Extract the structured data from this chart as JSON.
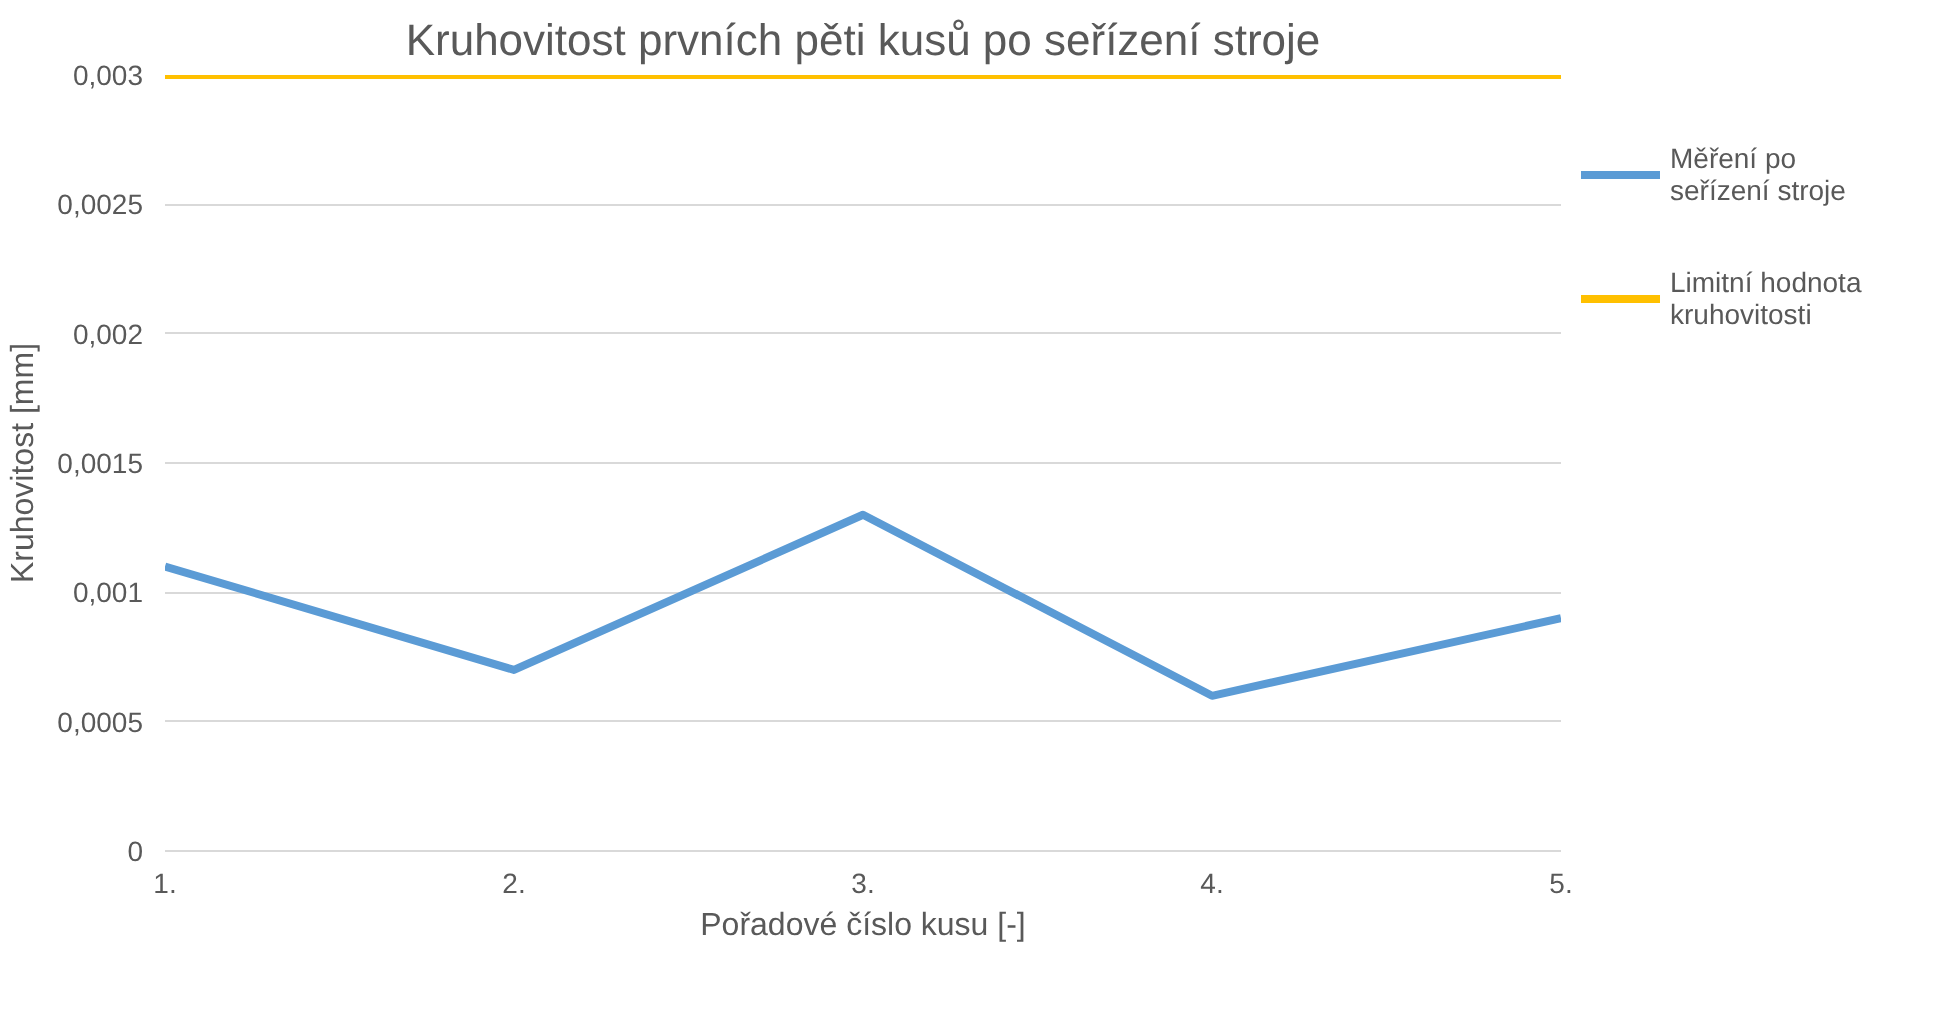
{
  "chart_data": {
    "type": "line",
    "title": "Kruhovitost prvních pěti kusů po seřízení stroje",
    "xlabel": "Pořadové číslo kusu [-]",
    "ylabel": "Kruhovitost [mm]",
    "categories": [
      "1.",
      "2.",
      "3.",
      "4.",
      "5."
    ],
    "series": [
      {
        "name": "Měření po seřízení stroje",
        "color": "#5b9bd5",
        "values": [
          0.0011,
          0.0007,
          0.0013,
          0.0006,
          0.0009
        ]
      },
      {
        "name": "Limitní hodnota kruhovitosti",
        "color": "#ffc000",
        "values": [
          0.003,
          0.003,
          0.003,
          0.003,
          0.003
        ]
      }
    ],
    "ylim": [
      0,
      0.003
    ],
    "yticks": [
      {
        "value": 0,
        "label": "0"
      },
      {
        "value": 0.0005,
        "label": "0,0005"
      },
      {
        "value": 0.001,
        "label": "0,001"
      },
      {
        "value": 0.0015,
        "label": "0,0015"
      },
      {
        "value": 0.002,
        "label": "0,002"
      },
      {
        "value": 0.0025,
        "label": "0,0025"
      },
      {
        "value": 0.003,
        "label": "0,003"
      }
    ],
    "grid": "y",
    "legend": "right",
    "marker": "none",
    "line_style": "solid"
  }
}
